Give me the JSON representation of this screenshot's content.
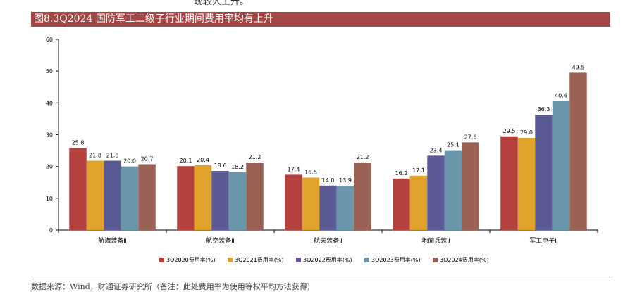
{
  "header_fragment": "现较大上升。",
  "figure_title": "图8.3Q2024 国防军工二级子行业期间费用率均有上升",
  "source_note": "数据来源：Wind，财通证券研究所（备注：此处费用率为使用等权平均方法获得）",
  "chart_data": {
    "type": "bar",
    "title": "",
    "xlabel": "",
    "ylabel": "",
    "ylim": [
      0,
      60
    ],
    "yticks": [
      0,
      10,
      20,
      30,
      40,
      50,
      60
    ],
    "grid": false,
    "legend_position": "bottom",
    "categories": [
      "航海装备Ⅱ",
      "航空装备Ⅱ",
      "航天装备Ⅱ",
      "地面兵装Ⅱ",
      "军工电子Ⅱ"
    ],
    "series": [
      {
        "name": "3Q2020费用率(%)",
        "color": "#b5413f",
        "values": [
          25.8,
          20.1,
          17.4,
          16.2,
          29.5
        ]
      },
      {
        "name": "3Q2021费用率(%)",
        "color": "#e0a22b",
        "values": [
          21.8,
          20.4,
          16.5,
          17.1,
          29.0
        ]
      },
      {
        "name": "3Q2022费用率(%)",
        "color": "#5a5b95",
        "values": [
          21.8,
          18.6,
          14.0,
          23.4,
          36.3
        ]
      },
      {
        "name": "3Q2023费用率(%)",
        "color": "#6b97ad",
        "values": [
          20.0,
          18.2,
          13.9,
          25.1,
          40.6
        ]
      },
      {
        "name": "3Q2024费用率(%)",
        "color": "#9a6254",
        "values": [
          20.7,
          21.2,
          21.2,
          27.6,
          49.5
        ]
      }
    ]
  }
}
